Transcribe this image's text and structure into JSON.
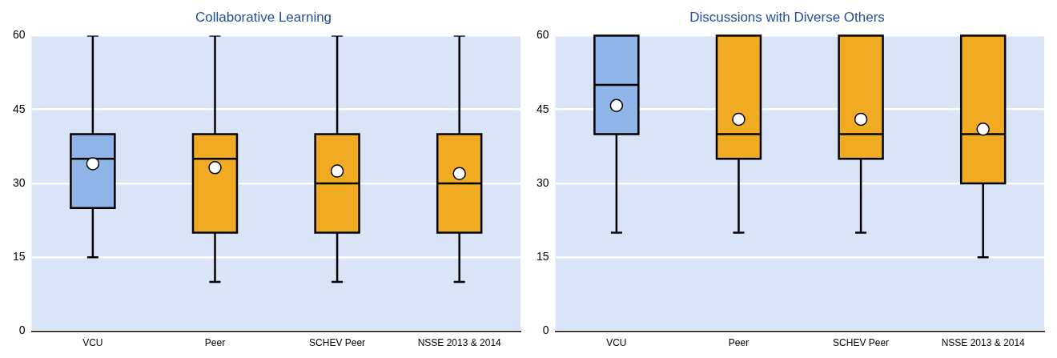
{
  "chart_data": [
    {
      "type": "box",
      "title": "Collaborative Learning",
      "categories": [
        "VCU",
        "Peer",
        "SCHEV Peer",
        "NSSE 2013 & 2014"
      ],
      "colors": [
        "#8eb4e8",
        "#f0ab22",
        "#f0ab22",
        "#f0ab22"
      ],
      "ylim": [
        0,
        60
      ],
      "yticks": [
        0,
        15,
        30,
        45,
        60
      ],
      "grid": "y",
      "boxes": [
        {
          "low": 15,
          "q1": 25,
          "median": 35,
          "q3": 40,
          "high": 60,
          "mean": 34
        },
        {
          "low": 10,
          "q1": 20,
          "median": 35,
          "q3": 40,
          "high": 60,
          "mean": 33.2
        },
        {
          "low": 10,
          "q1": 20,
          "median": 30,
          "q3": 40,
          "high": 60,
          "mean": 32.5
        },
        {
          "low": 10,
          "q1": 20,
          "median": 30,
          "q3": 40,
          "high": 60,
          "mean": 32
        }
      ]
    },
    {
      "type": "box",
      "title": "Discussions with Diverse Others",
      "categories": [
        "VCU",
        "Peer",
        "SCHEV Peer",
        "NSSE 2013 & 2014"
      ],
      "colors": [
        "#8eb4e8",
        "#f0ab22",
        "#f0ab22",
        "#f0ab22"
      ],
      "ylim": [
        0,
        60
      ],
      "yticks": [
        0,
        15,
        30,
        45,
        60
      ],
      "grid": "y",
      "boxes": [
        {
          "low": 20,
          "q1": 40,
          "median": 50,
          "q3": 60,
          "high": 60,
          "mean": 45.8
        },
        {
          "low": 20,
          "q1": 35,
          "median": 40,
          "q3": 60,
          "high": 60,
          "mean": 43
        },
        {
          "low": 20,
          "q1": 35,
          "median": 40,
          "q3": 60,
          "high": 60,
          "mean": 43
        },
        {
          "low": 15,
          "q1": 30,
          "median": 40,
          "q3": 60,
          "high": 60,
          "mean": 41
        }
      ]
    }
  ]
}
